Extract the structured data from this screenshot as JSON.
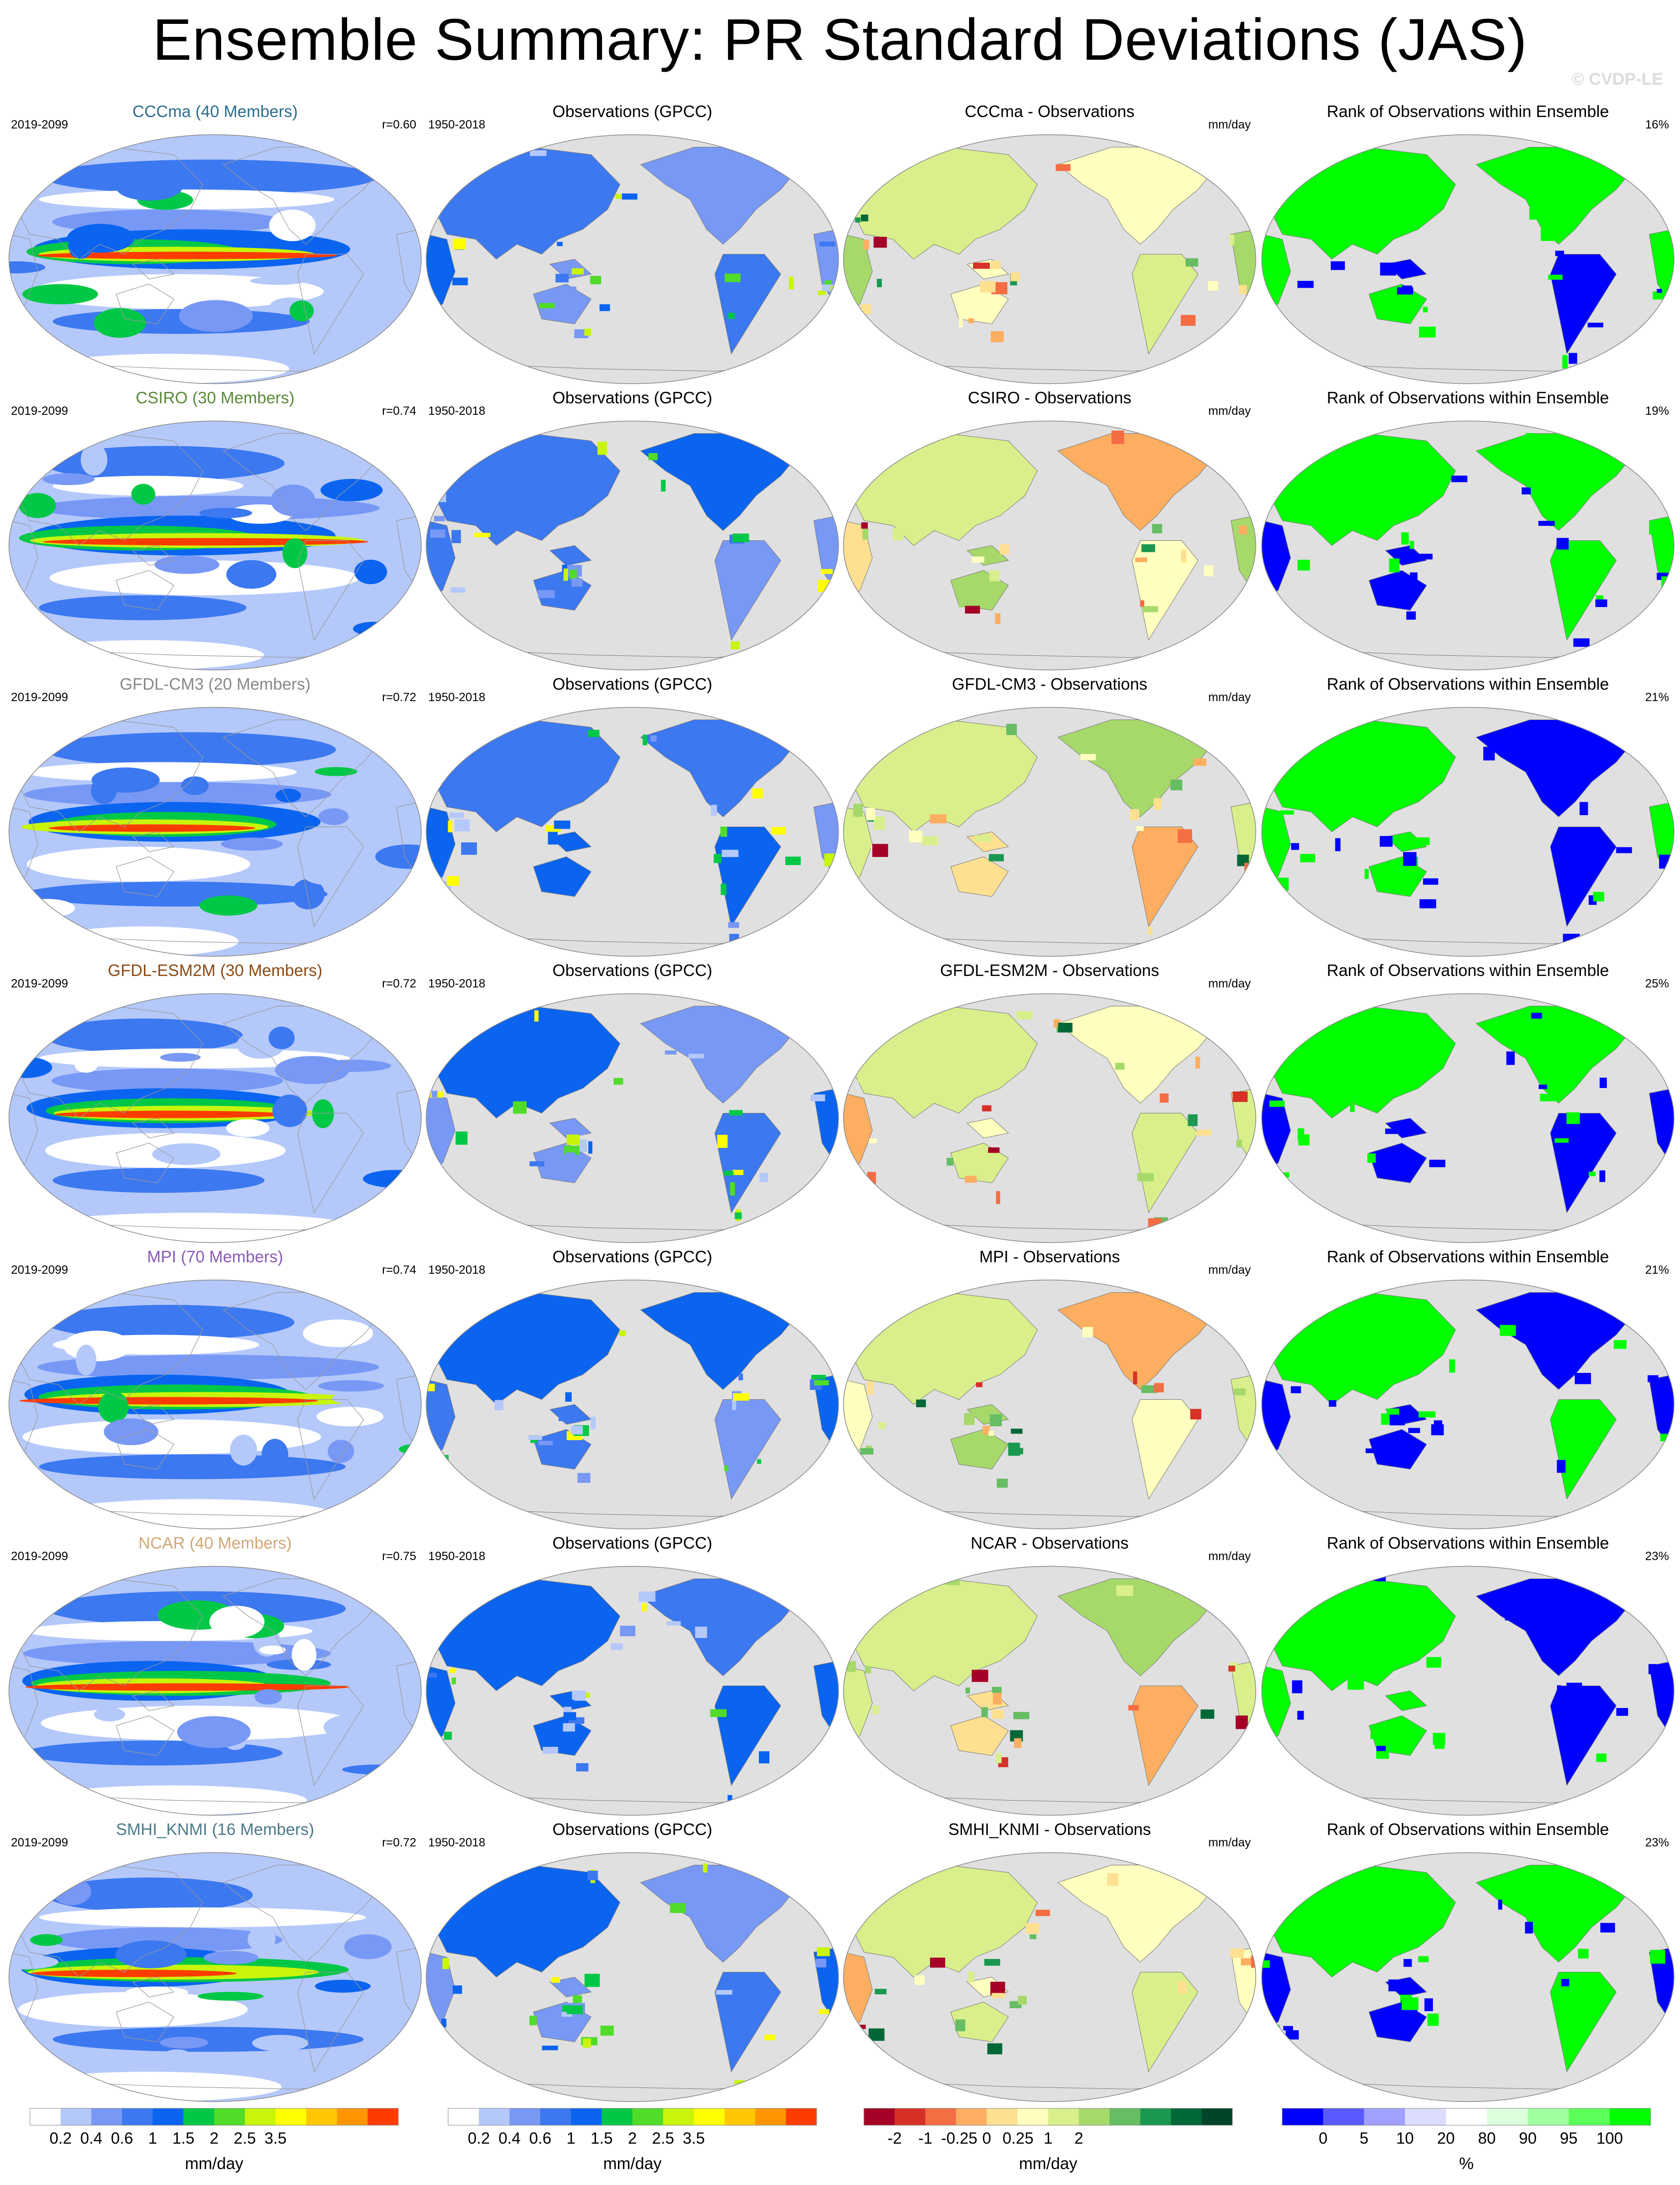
{
  "title": "Ensemble Summary: PR Standard Deviations (JAS)",
  "watermark": "© CVDP-LE",
  "colors": {
    "blue_scale": [
      "#ffffff",
      "#b4c8fa",
      "#7898f5",
      "#3c78f0",
      "#0a64f0",
      "#00c846",
      "#50dc28",
      "#c8f50a",
      "#ffff00",
      "#ffc800",
      "#ff9600",
      "#ff3c00",
      "#c80000"
    ],
    "diff_scale": [
      "#a50026",
      "#d73027",
      "#f46d43",
      "#fdae61",
      "#fee090",
      "#ffffbf",
      "#d9ef8b",
      "#a6d96a",
      "#66bd63",
      "#1a9850",
      "#006837"
    ],
    "rank_scale": [
      "#0000ff",
      "#5a5aff",
      "#a0a0ff",
      "#dcdcff",
      "#ffffff",
      "#dcffdc",
      "#a0ffa0",
      "#5aff5a",
      "#00ff00"
    ],
    "ocean_gray": "#e0e0e0"
  },
  "rows": [
    {
      "model": "CCCma (40 Members)",
      "model_color": "#2b6e8f",
      "period": "2019-2099",
      "r": "r=0.60",
      "obs_title": "Observations (GPCC)",
      "obs_period": "1950-2018",
      "diff_title": "CCCma - Observations",
      "diff_unit": "mm/day",
      "rank_title": "Rank of Observations within Ensemble",
      "rank_pct": "16%"
    },
    {
      "model": "CSIRO (30 Members)",
      "model_color": "#5b8a3a",
      "period": "2019-2099",
      "r": "r=0.74",
      "obs_title": "Observations (GPCC)",
      "obs_period": "1950-2018",
      "diff_title": "CSIRO - Observations",
      "diff_unit": "mm/day",
      "rank_title": "Rank of Observations within Ensemble",
      "rank_pct": "19%"
    },
    {
      "model": "GFDL-CM3 (20 Members)",
      "model_color": "#888888",
      "period": "2019-2099",
      "r": "r=0.72",
      "obs_title": "Observations (GPCC)",
      "obs_period": "1950-2018",
      "diff_title": "GFDL-CM3 - Observations",
      "diff_unit": "mm/day",
      "rank_title": "Rank of Observations within Ensemble",
      "rank_pct": "21%"
    },
    {
      "model": "GFDL-ESM2M (30 Members)",
      "model_color": "#8b4a14",
      "period": "2019-2099",
      "r": "r=0.72",
      "obs_title": "Observations (GPCC)",
      "obs_period": "1950-2018",
      "diff_title": "GFDL-ESM2M - Observations",
      "diff_unit": "mm/day",
      "rank_title": "Rank of Observations within Ensemble",
      "rank_pct": "25%"
    },
    {
      "model": "MPI (70 Members)",
      "model_color": "#8a5ab8",
      "period": "2019-2099",
      "r": "r=0.74",
      "obs_title": "Observations (GPCC)",
      "obs_period": "1950-2018",
      "diff_title": "MPI - Observations",
      "diff_unit": "mm/day",
      "rank_title": "Rank of Observations within Ensemble",
      "rank_pct": "21%"
    },
    {
      "model": "NCAR (40 Members)",
      "model_color": "#d0a878",
      "period": "2019-2099",
      "r": "r=0.75",
      "obs_title": "Observations (GPCC)",
      "obs_period": "1950-2018",
      "diff_title": "NCAR - Observations",
      "diff_unit": "mm/day",
      "rank_title": "Rank of Observations within Ensemble",
      "rank_pct": "23%"
    },
    {
      "model": "SMHI_KNMI (16 Members)",
      "model_color": "#4a7a8a",
      "period": "2019-2099",
      "r": "r=0.72",
      "obs_title": "Observations (GPCC)",
      "obs_period": "1950-2018",
      "diff_title": "SMHI_KNMI - Observations",
      "diff_unit": "mm/day",
      "rank_title": "Rank of Observations within Ensemble",
      "rank_pct": "23%"
    }
  ],
  "colorbars": {
    "model": {
      "labels": [
        "0.2",
        "0.4",
        "0.6",
        "1",
        "1.5",
        "2",
        "2.5",
        "3.5"
      ],
      "unit": "mm/day"
    },
    "obs": {
      "labels": [
        "0.2",
        "0.4",
        "0.6",
        "1",
        "1.5",
        "2",
        "2.5",
        "3.5"
      ],
      "unit": "mm/day"
    },
    "diff": {
      "labels": [
        "-2",
        "-1",
        "-0.25",
        "0",
        "0.25",
        "1",
        "2"
      ],
      "unit": "mm/day"
    },
    "rank": {
      "labels": [
        "0",
        "5",
        "10",
        "20",
        "80",
        "90",
        "95",
        "100"
      ],
      "unit": "%"
    }
  }
}
